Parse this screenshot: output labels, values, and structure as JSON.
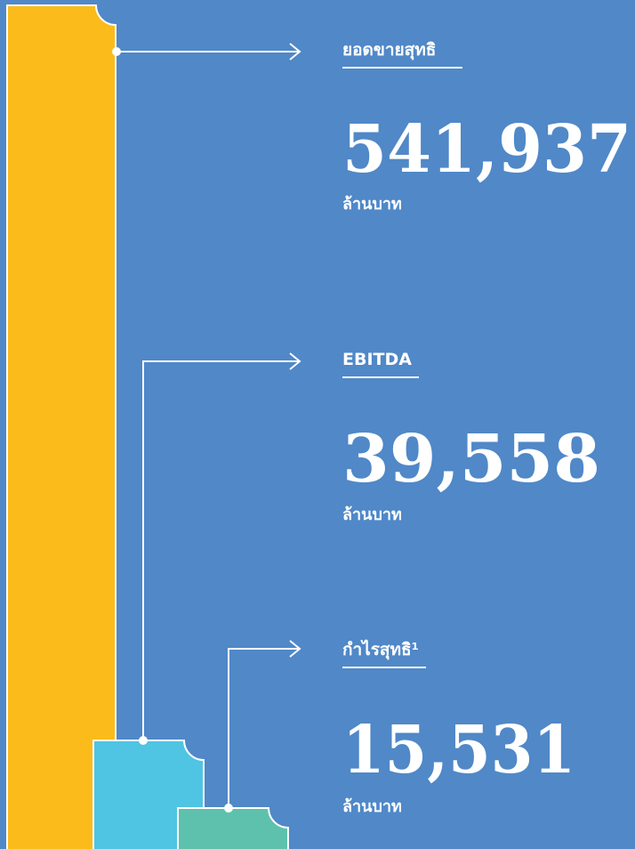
{
  "items": [
    {
      "label": "ยอดขายสุทธิ",
      "value": "541,937",
      "unit": "ล้านบาท"
    },
    {
      "label": "EBITDA",
      "value": "39,558",
      "unit": "ล้านบาท"
    },
    {
      "label": "กำไรสุทธิ¹",
      "value": "15,531",
      "unit": "ล้านบาท"
    }
  ]
}
